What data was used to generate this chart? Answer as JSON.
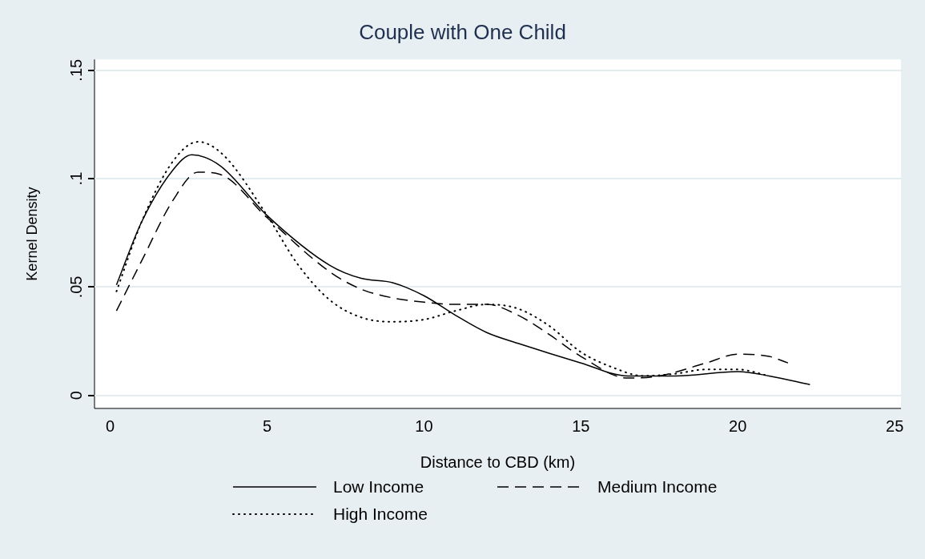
{
  "chart_data": {
    "type": "line",
    "title": "Couple with One Child",
    "xlabel": "Distance to CBD (km)",
    "ylabel": "Kernel Density",
    "xlim": [
      -0.5,
      25.2
    ],
    "xticks": [
      0,
      5,
      10,
      15,
      20,
      25
    ],
    "ylim": [
      -0.006,
      0.155
    ],
    "yticks": [
      {
        "value": 0,
        "label": "0"
      },
      {
        "value": 0.05,
        "label": ".05"
      },
      {
        "value": 0.1,
        "label": ".1"
      },
      {
        "value": 0.15,
        "label": ".15"
      }
    ],
    "grid": "y",
    "legend": "bottom",
    "marker": "none",
    "series": [
      {
        "name": "Low Income",
        "color": "#000000",
        "line_style": "solid",
        "x": [
          0.2,
          1,
          2,
          2.6,
          3.5,
          5,
          7,
          8,
          9,
          10,
          11,
          12,
          13,
          15,
          16.5,
          18,
          20,
          21,
          22.3
        ],
        "values": [
          0.051,
          0.08,
          0.104,
          0.111,
          0.106,
          0.083,
          0.06,
          0.054,
          0.052,
          0.046,
          0.037,
          0.029,
          0.024,
          0.015,
          0.009,
          0.009,
          0.011,
          0.009,
          0.005
        ]
      },
      {
        "name": "Medium Income",
        "color": "#000000",
        "line_style": "dashed",
        "x": [
          0.2,
          1,
          2,
          2.8,
          3.5,
          5,
          7,
          8,
          9,
          10,
          11,
          12,
          13,
          14,
          15,
          16.5,
          17.5,
          19,
          20,
          21,
          21.6
        ],
        "values": [
          0.039,
          0.062,
          0.09,
          0.103,
          0.102,
          0.082,
          0.057,
          0.049,
          0.045,
          0.043,
          0.042,
          0.042,
          0.037,
          0.028,
          0.018,
          0.008,
          0.009,
          0.015,
          0.019,
          0.018,
          0.015
        ]
      },
      {
        "name": "High Income",
        "color": "#000000",
        "line_style": "dotted",
        "x": [
          0.2,
          1,
          2,
          2.8,
          3.6,
          5,
          6,
          7,
          8,
          9,
          10,
          11,
          12,
          13,
          14,
          15,
          16,
          17,
          18,
          19,
          20,
          21
        ],
        "values": [
          0.048,
          0.08,
          0.108,
          0.117,
          0.111,
          0.083,
          0.06,
          0.044,
          0.036,
          0.034,
          0.035,
          0.039,
          0.042,
          0.04,
          0.032,
          0.02,
          0.013,
          0.009,
          0.01,
          0.012,
          0.012,
          0.009
        ]
      }
    ]
  }
}
